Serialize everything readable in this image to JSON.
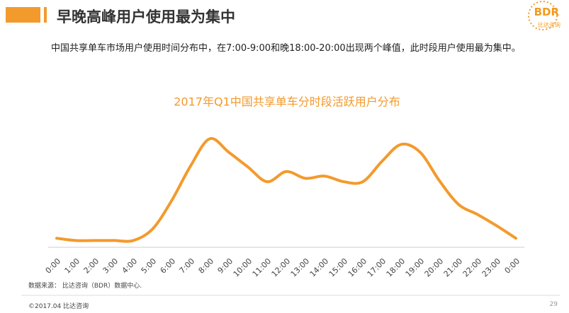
{
  "header": {
    "title": "早晚高峰用户使用最为集中",
    "logo": "BDR",
    "logo_sub": "比达咨询"
  },
  "description": "中国共享单车市场用户使用时间分布中，在7:00-9:00和晚18:00-20:00出现两个峰值，此时段用户使用最为集中。",
  "chart_data": {
    "type": "line",
    "title": "2017年Q1中国共享单车分时段活跃用户分布",
    "categories": [
      "0:00",
      "1:00",
      "2:00",
      "3:00",
      "4:00",
      "5:00",
      "6:00",
      "7:00",
      "8:00",
      "9:00",
      "10:00",
      "11:00",
      "12:00",
      "13:00",
      "14:00",
      "15:00",
      "16:00",
      "17:00",
      "18:00",
      "19:00",
      "20:00",
      "21:00",
      "22:00",
      "23:00",
      "0:00"
    ],
    "values": [
      8,
      6,
      6,
      6,
      6,
      16,
      41,
      72,
      96,
      84,
      71,
      58,
      67,
      61,
      63,
      58,
      58,
      76,
      91,
      84,
      59,
      38,
      29,
      19,
      8
    ],
    "color": "#f39a2c",
    "ylim": [
      0,
      100
    ]
  },
  "source": "数据来源： 比达咨询（BDR）数据中心.",
  "footer": {
    "left": "©2017.04    比达咨询",
    "page": "29"
  }
}
